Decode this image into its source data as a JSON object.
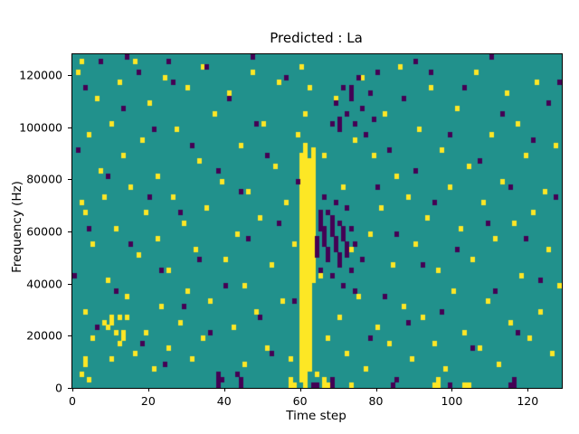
{
  "chart_data": {
    "type": "heatmap",
    "title": "Predicted : La",
    "xlabel": "Time step",
    "ylabel": "Frequency (Hz)",
    "x_range": [
      0,
      129
    ],
    "y_range": [
      0,
      128000
    ],
    "x_ticks": [
      0,
      20,
      40,
      60,
      80,
      100,
      120
    ],
    "y_ticks": [
      0,
      20000,
      40000,
      60000,
      80000,
      100000,
      120000
    ],
    "grid": {
      "cols": 129,
      "rows": 64
    },
    "legend_position": "none",
    "colors": {
      "background_mid": "#21918c",
      "high": "#fde725",
      "low": "#440154",
      "figure_background": "#ffffff",
      "axis": "#000000"
    },
    "cells_high": [
      [
        60,
        1,
        44
      ],
      [
        61,
        0,
        46
      ],
      [
        62,
        3,
        43
      ],
      [
        63,
        20,
        45
      ],
      [
        61,
        52
      ],
      [
        62,
        57
      ],
      [
        60,
        61
      ],
      [
        1,
        60
      ],
      [
        2,
        62
      ],
      [
        2,
        35
      ],
      [
        3,
        14
      ],
      [
        3,
        33
      ],
      [
        4,
        48
      ],
      [
        5,
        9
      ],
      [
        5,
        27
      ],
      [
        6,
        55
      ],
      [
        7,
        41
      ],
      [
        8,
        12
      ],
      [
        8,
        36
      ],
      [
        9,
        20
      ],
      [
        10,
        5
      ],
      [
        10,
        50
      ],
      [
        11,
        30
      ],
      [
        12,
        58
      ],
      [
        12,
        8
      ],
      [
        13,
        44
      ],
      [
        14,
        17
      ],
      [
        14,
        13
      ],
      [
        15,
        38
      ],
      [
        16,
        62
      ],
      [
        16,
        6
      ],
      [
        17,
        25
      ],
      [
        18,
        47
      ],
      [
        19,
        10
      ],
      [
        19,
        33
      ],
      [
        20,
        54
      ],
      [
        21,
        3
      ],
      [
        22,
        28
      ],
      [
        22,
        40
      ],
      [
        23,
        15
      ],
      [
        24,
        59
      ],
      [
        25,
        22
      ],
      [
        25,
        7
      ],
      [
        26,
        36
      ],
      [
        27,
        49
      ],
      [
        28,
        12
      ],
      [
        29,
        31
      ],
      [
        30,
        57
      ],
      [
        30,
        18
      ],
      [
        31,
        5
      ],
      [
        32,
        26
      ],
      [
        33,
        43
      ],
      [
        34,
        61
      ],
      [
        34,
        9
      ],
      [
        35,
        34
      ],
      [
        36,
        16
      ],
      [
        37,
        52
      ],
      [
        38,
        2
      ],
      [
        39,
        39
      ],
      [
        40,
        24
      ],
      [
        41,
        56
      ],
      [
        42,
        11
      ],
      [
        43,
        29
      ],
      [
        44,
        46
      ],
      [
        45,
        19
      ],
      [
        45,
        4
      ],
      [
        46,
        37
      ],
      [
        47,
        60
      ],
      [
        48,
        14
      ],
      [
        49,
        32
      ],
      [
        50,
        50
      ],
      [
        51,
        7
      ],
      [
        52,
        23
      ],
      [
        53,
        42
      ],
      [
        54,
        58
      ],
      [
        55,
        16
      ],
      [
        56,
        35
      ],
      [
        57,
        5
      ],
      [
        58,
        27
      ],
      [
        59,
        48
      ],
      [
        64,
        2
      ],
      [
        65,
        21
      ],
      [
        66,
        44
      ],
      [
        67,
        9
      ],
      [
        68,
        31
      ],
      [
        69,
        55
      ],
      [
        70,
        13
      ],
      [
        71,
        38
      ],
      [
        72,
        6
      ],
      [
        73,
        26
      ],
      [
        74,
        47
      ],
      [
        75,
        17
      ],
      [
        76,
        59
      ],
      [
        77,
        3
      ],
      [
        78,
        29
      ],
      [
        79,
        44
      ],
      [
        80,
        11
      ],
      [
        81,
        34
      ],
      [
        82,
        52
      ],
      [
        83,
        8
      ],
      [
        84,
        23
      ],
      [
        85,
        40
      ],
      [
        86,
        61
      ],
      [
        87,
        15
      ],
      [
        88,
        36
      ],
      [
        89,
        5
      ],
      [
        90,
        27
      ],
      [
        91,
        49
      ],
      [
        92,
        13
      ],
      [
        93,
        32
      ],
      [
        94,
        57
      ],
      [
        95,
        8
      ],
      [
        96,
        22
      ],
      [
        97,
        45
      ],
      [
        98,
        3
      ],
      [
        99,
        38
      ],
      [
        100,
        18
      ],
      [
        101,
        53
      ],
      [
        102,
        30
      ],
      [
        103,
        10
      ],
      [
        104,
        42
      ],
      [
        105,
        24
      ],
      [
        106,
        60
      ],
      [
        107,
        7
      ],
      [
        108,
        35
      ],
      [
        109,
        16
      ],
      [
        110,
        48
      ],
      [
        111,
        28
      ],
      [
        112,
        4
      ],
      [
        113,
        39
      ],
      [
        114,
        56
      ],
      [
        115,
        12
      ],
      [
        116,
        31
      ],
      [
        117,
        50
      ],
      [
        118,
        21
      ],
      [
        119,
        44
      ],
      [
        120,
        9
      ],
      [
        121,
        33
      ],
      [
        122,
        58
      ],
      [
        123,
        14
      ],
      [
        124,
        37
      ],
      [
        125,
        26
      ],
      [
        126,
        6
      ],
      [
        127,
        46
      ],
      [
        128,
        19
      ],
      [
        57,
        0,
        1
      ],
      [
        58,
        0
      ],
      [
        66,
        0,
        1
      ],
      [
        67,
        0
      ],
      [
        73,
        0
      ],
      [
        95,
        0
      ],
      [
        96,
        0,
        1
      ],
      [
        103,
        0
      ],
      [
        104,
        0
      ],
      [
        9,
        11
      ],
      [
        10,
        12,
        13
      ],
      [
        11,
        10
      ],
      [
        12,
        13
      ],
      [
        13,
        9,
        10
      ],
      [
        2,
        2
      ],
      [
        3,
        4,
        5
      ],
      [
        4,
        1
      ]
    ],
    "cells_low": [
      [
        0,
        21
      ],
      [
        1,
        45
      ],
      [
        3,
        57
      ],
      [
        4,
        30
      ],
      [
        6,
        11
      ],
      [
        7,
        62
      ],
      [
        9,
        40
      ],
      [
        11,
        18
      ],
      [
        13,
        53
      ],
      [
        15,
        27
      ],
      [
        17,
        60
      ],
      [
        18,
        8
      ],
      [
        20,
        36
      ],
      [
        21,
        49
      ],
      [
        23,
        22
      ],
      [
        24,
        4
      ],
      [
        26,
        58
      ],
      [
        28,
        33
      ],
      [
        29,
        15
      ],
      [
        31,
        46
      ],
      [
        33,
        24
      ],
      [
        35,
        61
      ],
      [
        36,
        10
      ],
      [
        38,
        41
      ],
      [
        40,
        19
      ],
      [
        41,
        55
      ],
      [
        43,
        2
      ],
      [
        44,
        37
      ],
      [
        46,
        28
      ],
      [
        48,
        50
      ],
      [
        49,
        13
      ],
      [
        51,
        44
      ],
      [
        52,
        6
      ],
      [
        54,
        31
      ],
      [
        56,
        59
      ],
      [
        58,
        16
      ],
      [
        59,
        39
      ],
      [
        64,
        25,
        28
      ],
      [
        65,
        30,
        33
      ],
      [
        65,
        22
      ],
      [
        66,
        27,
        30
      ],
      [
        66,
        36
      ],
      [
        67,
        24,
        26
      ],
      [
        67,
        33
      ],
      [
        68,
        29,
        32
      ],
      [
        68,
        21
      ],
      [
        69,
        26,
        28
      ],
      [
        69,
        35
      ],
      [
        70,
        23,
        25
      ],
      [
        70,
        31
      ],
      [
        71,
        28,
        30
      ],
      [
        71,
        19
      ],
      [
        72,
        25,
        27
      ],
      [
        72,
        34
      ],
      [
        73,
        22
      ],
      [
        73,
        30
      ],
      [
        74,
        27
      ],
      [
        74,
        18
      ],
      [
        68,
        50
      ],
      [
        69,
        54
      ],
      [
        70,
        49,
        51
      ],
      [
        71,
        57
      ],
      [
        72,
        52
      ],
      [
        73,
        55,
        57
      ],
      [
        74,
        50
      ],
      [
        75,
        59
      ],
      [
        76,
        53
      ],
      [
        77,
        48
      ],
      [
        78,
        56
      ],
      [
        79,
        51
      ],
      [
        80,
        60
      ],
      [
        76,
        24
      ],
      [
        78,
        9
      ],
      [
        80,
        38
      ],
      [
        82,
        17
      ],
      [
        83,
        45
      ],
      [
        85,
        29
      ],
      [
        87,
        55
      ],
      [
        88,
        12
      ],
      [
        90,
        41
      ],
      [
        92,
        23
      ],
      [
        94,
        60
      ],
      [
        95,
        35
      ],
      [
        97,
        14
      ],
      [
        99,
        48
      ],
      [
        101,
        26
      ],
      [
        103,
        57
      ],
      [
        105,
        7
      ],
      [
        107,
        43
      ],
      [
        109,
        31
      ],
      [
        111,
        18
      ],
      [
        113,
        52
      ],
      [
        115,
        38
      ],
      [
        117,
        10
      ],
      [
        119,
        28
      ],
      [
        121,
        47
      ],
      [
        123,
        20
      ],
      [
        125,
        54
      ],
      [
        127,
        36
      ],
      [
        128,
        58
      ],
      [
        38,
        0,
        2
      ],
      [
        39,
        1
      ],
      [
        44,
        0,
        1
      ],
      [
        63,
        0
      ],
      [
        64,
        0
      ],
      [
        68,
        0,
        1
      ],
      [
        84,
        0
      ],
      [
        85,
        1
      ],
      [
        99,
        0
      ],
      [
        115,
        0
      ],
      [
        116,
        0,
        1
      ],
      [
        25,
        62
      ],
      [
        47,
        63
      ],
      [
        90,
        62
      ],
      [
        110,
        63
      ],
      [
        14,
        63
      ]
    ]
  }
}
